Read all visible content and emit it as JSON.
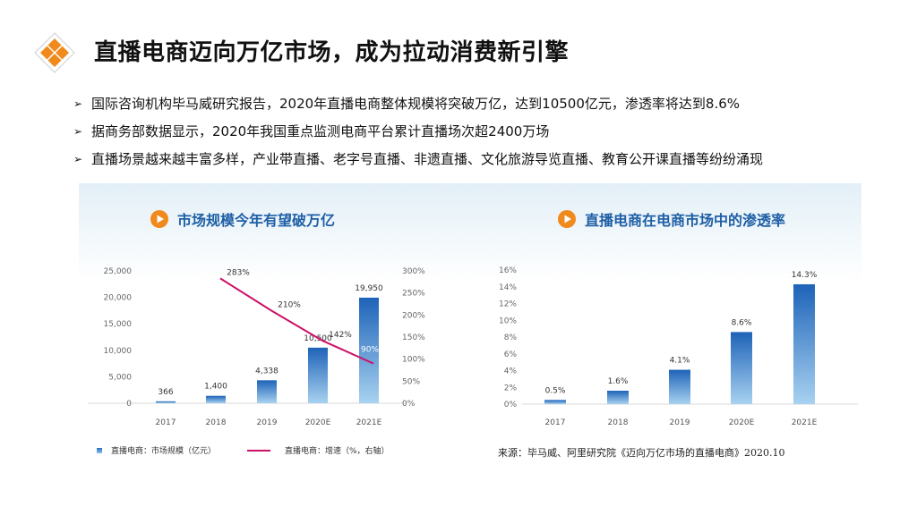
{
  "title": "直播电商迈向万亿市场，成为拉动消费新引擎",
  "bullets": [
    "国际咨询机构毕马威研究报告，2020年直播电商整体规模将突破万亿，达到10500亿元，渗透率将达到8.6%",
    "据商务部数据显示，2020年我国重点监测电商平台累计直播场次超2400万场",
    "直播场景越来越丰富多样，产业带直播、老字号直播、非遗直播、文化旅游导览直播、教育公开课直播等纷纷涌现"
  ],
  "colors": {
    "bar_top": "#1e63b8",
    "bar_bottom": "#a8d2f0",
    "line": "#cc1166",
    "title_blue": "#1e5fa6",
    "accent_orange": "#f08a1c"
  },
  "chart_data": [
    {
      "type": "bar+line",
      "title": "市场规模今年有望破万亿",
      "categories": [
        "2017",
        "2018",
        "2019",
        "2020E",
        "2021E"
      ],
      "series": [
        {
          "name": "直播电商：市场规模（亿元）",
          "type": "bar",
          "axis": "left",
          "values": [
            366,
            1400,
            4338,
            10500,
            19950
          ],
          "labels": [
            "366",
            "1,400",
            "4,338",
            "10,500",
            "19,950"
          ]
        },
        {
          "name": "直播电商：增速（%，右轴）",
          "type": "line",
          "axis": "right",
          "x": [
            "2018",
            "2019",
            "2020E",
            "2021E"
          ],
          "values": [
            283,
            210,
            142,
            90
          ],
          "labels": [
            "283%",
            "210%",
            "142%",
            "90%"
          ]
        }
      ],
      "left_ticks": [
        "25,000",
        "20,000",
        "15,000",
        "10,000",
        "5,000",
        "0"
      ],
      "ylim_left": [
        0,
        25000
      ],
      "right_ticks": [
        "300%",
        "250%",
        "200%",
        "150%",
        "100%",
        "50%",
        "0%"
      ],
      "ylim_right": [
        0,
        300
      ]
    },
    {
      "type": "bar",
      "title": "直播电商在电商市场中的渗透率",
      "categories": [
        "2017",
        "2018",
        "2019",
        "2020E",
        "2021E"
      ],
      "values": [
        0.5,
        1.6,
        4.1,
        8.6,
        14.3
      ],
      "labels": [
        "0.5%",
        "1.6%",
        "4.1%",
        "8.6%",
        "14.3%"
      ],
      "ticks": [
        "16%",
        "14%",
        "12%",
        "10%",
        "8%",
        "6%",
        "4%",
        "2%",
        "0%"
      ],
      "ylim": [
        0,
        16
      ]
    }
  ],
  "legend": {
    "bar_label": "直播电商：市场规模（亿元）",
    "line_label": "直播电商：增速（%，右轴）"
  },
  "source": "来源：毕马威、阿里研究院《迈向万亿市场的直播电商》2020.10"
}
